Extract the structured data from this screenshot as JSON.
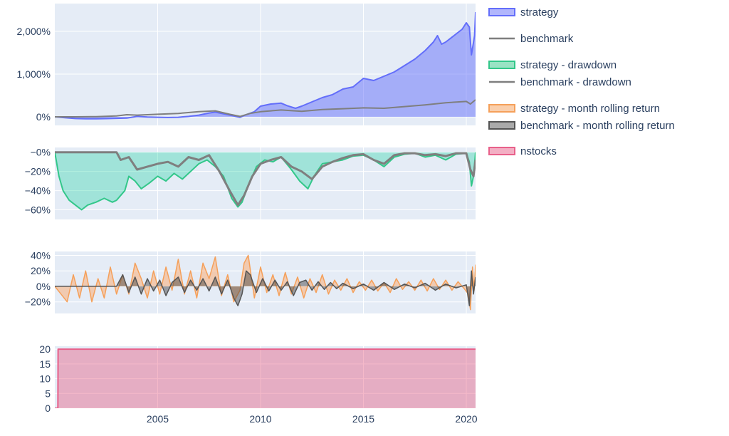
{
  "colors": {
    "strategy": "#636efa",
    "strategy_fill": "rgba(99,110,250,0.5)",
    "benchmark": "#7f7f7f",
    "strategy_drawdown": "#33c78a",
    "strategy_drawdown_fill": "rgba(0,204,150,0.3)",
    "benchmark_drawdown": "#7f7f7f",
    "strategy_rolling": "#f5a05a",
    "strategy_rolling_fill": "rgba(255,161,90,0.45)",
    "benchmark_rolling": "#555555",
    "nstocks": "#e8608a",
    "nstocks_fill": "rgba(230,80,120,0.4)",
    "plot_bg": "#e5ecf6",
    "grid": "#ffffff"
  },
  "legend": {
    "position": "right",
    "items": [
      {
        "label": "strategy",
        "color": "#636efa",
        "kind": "fill"
      },
      {
        "label": "benchmark",
        "color": "#7f7f7f",
        "kind": "line"
      },
      {
        "label": "strategy - drawdown",
        "color": "#33c78a",
        "kind": "fill"
      },
      {
        "label": "benchmark - drawdown",
        "color": "#7f7f7f",
        "kind": "line"
      },
      {
        "label": "strategy - month rolling return",
        "color": "#f5a05a",
        "kind": "fill"
      },
      {
        "label": "benchmark - month rolling return",
        "color": "#555555",
        "kind": "fill"
      },
      {
        "label": "nstocks",
        "color": "#e8608a",
        "kind": "fill"
      }
    ]
  },
  "chart_data": [
    {
      "type": "area",
      "panel": "cumulative_return",
      "xlim": [
        2000.0,
        2020.45
      ],
      "ylim": [
        -200,
        2650
      ],
      "ytick_values": [
        0,
        1000,
        2000
      ],
      "ytick_labels": [
        "0%",
        "1,000%",
        "2,000%"
      ],
      "grid": true,
      "series": [
        {
          "name": "strategy",
          "fill": true,
          "x": [
            2000.0,
            2000.5,
            2001.0,
            2001.5,
            2002.0,
            2002.5,
            2003.0,
            2003.5,
            2004.0,
            2004.5,
            2005.0,
            2005.5,
            2006.0,
            2006.5,
            2007.0,
            2007.5,
            2007.8,
            2008.2,
            2008.6,
            2009.0,
            2009.3,
            2009.7,
            2010.0,
            2010.5,
            2011.0,
            2011.3,
            2011.7,
            2012.0,
            2012.5,
            2013.0,
            2013.5,
            2014.0,
            2014.5,
            2015.0,
            2015.5,
            2016.0,
            2016.5,
            2017.0,
            2017.5,
            2018.0,
            2018.4,
            2018.6,
            2018.8,
            2019.0,
            2019.4,
            2019.8,
            2020.0,
            2020.15,
            2020.25,
            2020.32,
            2020.4,
            2020.45
          ],
          "y": [
            0,
            -20,
            -40,
            -45,
            -45,
            -42,
            -35,
            -30,
            10,
            -5,
            -10,
            -15,
            -10,
            10,
            40,
            90,
            110,
            70,
            30,
            -10,
            50,
            120,
            250,
            300,
            320,
            260,
            200,
            250,
            350,
            450,
            520,
            650,
            700,
            900,
            850,
            950,
            1050,
            1200,
            1350,
            1550,
            1750,
            1900,
            1700,
            1750,
            1900,
            2050,
            2200,
            2100,
            1450,
            1650,
            1900,
            2450
          ]
        },
        {
          "name": "benchmark",
          "fill": false,
          "x": [
            2000.0,
            2001.0,
            2002.0,
            2003.0,
            2003.5,
            2004.0,
            2005.0,
            2006.0,
            2007.0,
            2007.8,
            2008.5,
            2009.0,
            2009.5,
            2010.0,
            2011.0,
            2012.0,
            2013.0,
            2014.0,
            2015.0,
            2016.0,
            2017.0,
            2018.0,
            2019.0,
            2020.0,
            2020.2,
            2020.45
          ],
          "y": [
            0,
            0,
            5,
            20,
            50,
            40,
            60,
            80,
            120,
            140,
            60,
            10,
            80,
            120,
            160,
            130,
            170,
            190,
            210,
            200,
            240,
            280,
            330,
            360,
            300,
            400
          ]
        }
      ]
    },
    {
      "type": "area",
      "panel": "drawdown",
      "xlim": [
        2000.0,
        2020.45
      ],
      "ylim": [
        -70,
        5
      ],
      "ytick_values": [
        0,
        -20,
        -40,
        -60
      ],
      "ytick_labels": [
        "−0%",
        "−20%",
        "−40%",
        "−60%"
      ],
      "grid": true,
      "series": [
        {
          "name": "strategy - drawdown",
          "fill": true,
          "x": [
            2000.0,
            2000.2,
            2000.4,
            2000.7,
            2001.0,
            2001.3,
            2001.6,
            2002.0,
            2002.4,
            2002.8,
            2003.0,
            2003.2,
            2003.4,
            2003.6,
            2003.9,
            2004.2,
            2004.6,
            2005.0,
            2005.4,
            2005.8,
            2006.2,
            2006.6,
            2007.0,
            2007.4,
            2007.8,
            2008.2,
            2008.6,
            2008.9,
            2009.1,
            2009.4,
            2009.8,
            2010.2,
            2010.6,
            2011.0,
            2011.5,
            2011.9,
            2012.3,
            2012.6,
            2013.0,
            2013.5,
            2014.0,
            2014.5,
            2015.0,
            2015.5,
            2016.0,
            2016.5,
            2017.0,
            2017.5,
            2018.0,
            2018.5,
            2019.0,
            2019.5,
            2020.0,
            2020.15,
            2020.25,
            2020.35,
            2020.45
          ],
          "y": [
            0,
            -25,
            -40,
            -50,
            -55,
            -60,
            -55,
            -52,
            -48,
            -52,
            -50,
            -45,
            -40,
            -25,
            -30,
            -38,
            -32,
            -25,
            -30,
            -22,
            -28,
            -20,
            -12,
            -8,
            -15,
            -25,
            -48,
            -57,
            -52,
            -35,
            -15,
            -8,
            -10,
            -5,
            -18,
            -30,
            -38,
            -25,
            -12,
            -10,
            -8,
            -4,
            -3,
            -8,
            -15,
            -5,
            -2,
            -1,
            -5,
            -3,
            -8,
            -2,
            -1,
            -10,
            -35,
            -25,
            0
          ]
        },
        {
          "name": "benchmark - drawdown",
          "fill": false,
          "x": [
            2000.0,
            2001.0,
            2002.0,
            2003.0,
            2003.2,
            2003.6,
            2004.0,
            2004.5,
            2005.0,
            2005.5,
            2006.0,
            2006.5,
            2007.0,
            2007.5,
            2008.0,
            2008.5,
            2008.9,
            2009.2,
            2009.6,
            2010.0,
            2010.5,
            2011.0,
            2011.5,
            2012.0,
            2012.5,
            2013.0,
            2013.5,
            2014.0,
            2014.5,
            2015.0,
            2015.5,
            2016.0,
            2016.5,
            2017.0,
            2017.5,
            2018.0,
            2018.5,
            2019.0,
            2019.5,
            2020.0,
            2020.2,
            2020.35,
            2020.45
          ],
          "y": [
            0,
            0,
            0,
            0,
            -8,
            -5,
            -18,
            -15,
            -12,
            -10,
            -15,
            -5,
            -8,
            -3,
            -20,
            -40,
            -55,
            -45,
            -25,
            -12,
            -8,
            -5,
            -15,
            -20,
            -28,
            -15,
            -10,
            -6,
            -3,
            -2,
            -8,
            -12,
            -3,
            -1,
            -1,
            -3,
            -2,
            -4,
            -1,
            -1,
            -18,
            -25,
            -8
          ]
        }
      ]
    },
    {
      "type": "area",
      "panel": "month_rolling_return",
      "xlim": [
        2000.0,
        2020.45
      ],
      "ylim": [
        -35,
        45
      ],
      "ytick_values": [
        40,
        20,
        0,
        -20
      ],
      "ytick_labels": [
        "40%",
        "20%",
        "0%",
        "−20%"
      ],
      "grid": true,
      "series": [
        {
          "name": "strategy - month rolling return",
          "fill": true,
          "x": [
            2000.0,
            2000.3,
            2000.6,
            2000.9,
            2001.2,
            2001.5,
            2001.8,
            2002.1,
            2002.4,
            2002.7,
            2003.0,
            2003.3,
            2003.6,
            2003.9,
            2004.2,
            2004.5,
            2004.8,
            2005.1,
            2005.4,
            2005.7,
            2006.0,
            2006.3,
            2006.6,
            2006.9,
            2007.2,
            2007.5,
            2007.8,
            2008.1,
            2008.4,
            2008.7,
            2009.0,
            2009.2,
            2009.4,
            2009.7,
            2010.0,
            2010.3,
            2010.6,
            2010.9,
            2011.2,
            2011.5,
            2011.8,
            2012.1,
            2012.4,
            2012.7,
            2013.0,
            2013.3,
            2013.6,
            2013.9,
            2014.2,
            2014.5,
            2014.8,
            2015.1,
            2015.4,
            2015.7,
            2016.0,
            2016.3,
            2016.6,
            2016.9,
            2017.2,
            2017.5,
            2017.8,
            2018.1,
            2018.4,
            2018.7,
            2019.0,
            2019.3,
            2019.6,
            2019.9,
            2020.1,
            2020.2,
            2020.3,
            2020.38,
            2020.45
          ],
          "y": [
            0,
            -10,
            -20,
            15,
            -15,
            20,
            -20,
            10,
            -15,
            25,
            -10,
            15,
            -10,
            30,
            10,
            -15,
            20,
            -10,
            25,
            -5,
            35,
            -10,
            20,
            -15,
            30,
            10,
            38,
            -12,
            15,
            -20,
            -5,
            30,
            40,
            -15,
            25,
            -8,
            15,
            -12,
            18,
            -10,
            12,
            -15,
            10,
            -8,
            15,
            -10,
            8,
            -5,
            10,
            -8,
            6,
            -5,
            8,
            -6,
            5,
            -8,
            10,
            -4,
            6,
            -5,
            8,
            -6,
            10,
            -4,
            8,
            -5,
            6,
            -3,
            -10,
            -30,
            25,
            -5,
            28
          ]
        },
        {
          "name": "benchmark - month rolling return",
          "fill": true,
          "x": [
            2000.0,
            2001.0,
            2002.0,
            2003.0,
            2003.3,
            2003.6,
            2003.9,
            2004.2,
            2004.5,
            2004.8,
            2005.1,
            2005.4,
            2005.7,
            2006.0,
            2006.3,
            2006.6,
            2006.9,
            2007.2,
            2007.5,
            2007.8,
            2008.1,
            2008.4,
            2008.7,
            2008.9,
            2009.1,
            2009.3,
            2009.5,
            2009.8,
            2010.1,
            2010.4,
            2010.7,
            2011.0,
            2011.3,
            2011.6,
            2011.9,
            2012.2,
            2012.5,
            2012.8,
            2013.1,
            2013.4,
            2013.7,
            2014.0,
            2014.5,
            2015.0,
            2015.5,
            2016.0,
            2016.5,
            2017.0,
            2017.5,
            2018.0,
            2018.5,
            2019.0,
            2019.5,
            2020.0,
            2020.15,
            2020.25,
            2020.35,
            2020.45
          ],
          "y": [
            0,
            0,
            0,
            0,
            15,
            -8,
            12,
            -10,
            10,
            -6,
            8,
            -12,
            5,
            12,
            -8,
            8,
            -5,
            10,
            -6,
            12,
            -10,
            8,
            -15,
            -25,
            -10,
            20,
            15,
            -8,
            10,
            -6,
            8,
            -5,
            6,
            -12,
            5,
            8,
            -5,
            6,
            -4,
            5,
            -3,
            4,
            -3,
            3,
            -5,
            5,
            -4,
            3,
            -2,
            4,
            -5,
            3,
            -2,
            2,
            -25,
            20,
            -10,
            12
          ]
        }
      ]
    },
    {
      "type": "area",
      "panel": "nstocks",
      "xlim": [
        2000.0,
        2020.45
      ],
      "ylim": [
        0,
        21
      ],
      "ytick_values": [
        0,
        5,
        10,
        15,
        20
      ],
      "ytick_labels": [
        "0",
        "5",
        "10",
        "15",
        "20"
      ],
      "xtick_values": [
        2005,
        2010,
        2015,
        2020
      ],
      "xtick_labels": [
        "2005",
        "2010",
        "2015",
        "2020"
      ],
      "grid": true,
      "series": [
        {
          "name": "nstocks",
          "fill": true,
          "x": [
            2000.0,
            2000.15,
            2000.16,
            2020.45
          ],
          "y": [
            0,
            0,
            20,
            20
          ]
        }
      ]
    }
  ]
}
